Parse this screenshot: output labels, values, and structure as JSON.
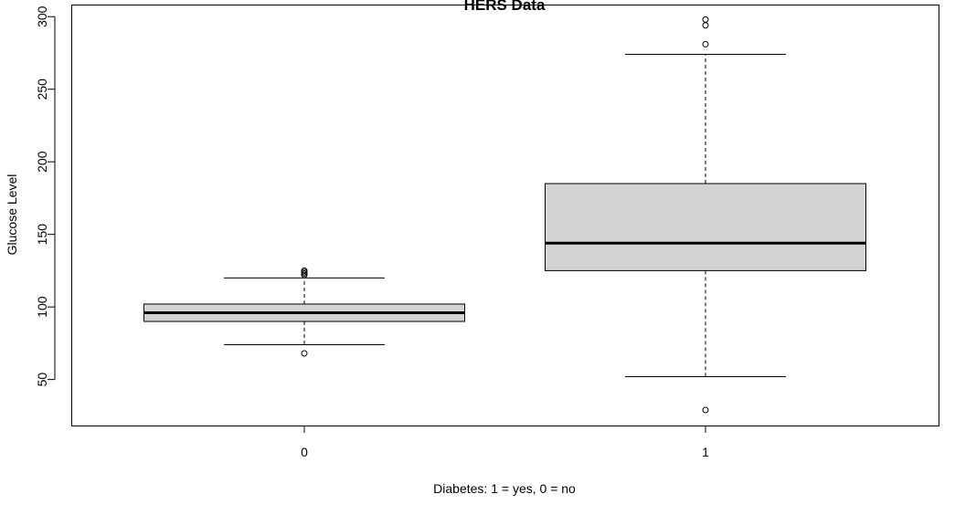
{
  "chart_data": {
    "type": "boxplot",
    "title": "HERS Data",
    "xlabel": "Diabetes: 1 = yes, 0 = no",
    "ylabel": "Glucose Level",
    "ylim": [
      18,
      308
    ],
    "yticks": [
      50,
      100,
      150,
      200,
      250,
      300
    ],
    "categories": [
      "0",
      "1"
    ],
    "boxes": [
      {
        "category": "0",
        "whisker_low": 74,
        "q1": 90,
        "median": 96,
        "q3": 102,
        "whisker_high": 120,
        "outliers": [
          68,
          122,
          123,
          124,
          125
        ]
      },
      {
        "category": "1",
        "whisker_low": 52,
        "q1": 125,
        "median": 144,
        "q3": 185,
        "whisker_high": 274,
        "outliers": [
          29,
          281,
          294,
          298
        ]
      }
    ],
    "box_fill": "#d3d3d3",
    "grid": false
  }
}
